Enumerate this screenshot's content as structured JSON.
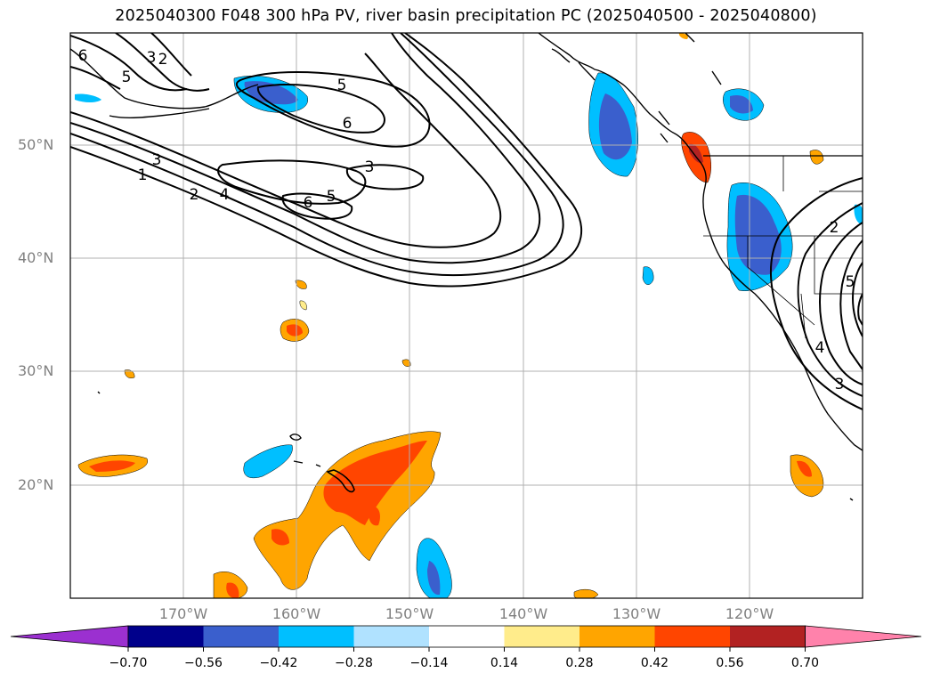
{
  "title": "2025040300 F048 300 hPa PV, river basin precipitation PC (2025040500 - 2025040800)",
  "map": {
    "lat_labels": [
      "50°N",
      "40°N",
      "30°N",
      "20°N"
    ],
    "lon_labels": [
      "170°W",
      "160°W",
      "150°W",
      "140°W",
      "130°W",
      "120°W"
    ],
    "contour_labels": [
      "6",
      "3",
      "2",
      "5",
      "5",
      "6",
      "3",
      "1",
      "2",
      "4",
      "6",
      "5",
      "3",
      "2",
      "5",
      "4",
      "3"
    ]
  },
  "colorbar": {
    "ticks": [
      "−0.70",
      "−0.56",
      "−0.42",
      "−0.28",
      "−0.14",
      "0.14",
      "0.28",
      "0.42",
      "0.56",
      "0.70"
    ],
    "colors": [
      "#9b30d0",
      "#00008b",
      "#3a5fcd",
      "#00bfff",
      "#b0e2ff",
      "#ffffff",
      "#ffec8b",
      "#ffa500",
      "#ff4500",
      "#b22222",
      "#ff82ab"
    ]
  }
}
